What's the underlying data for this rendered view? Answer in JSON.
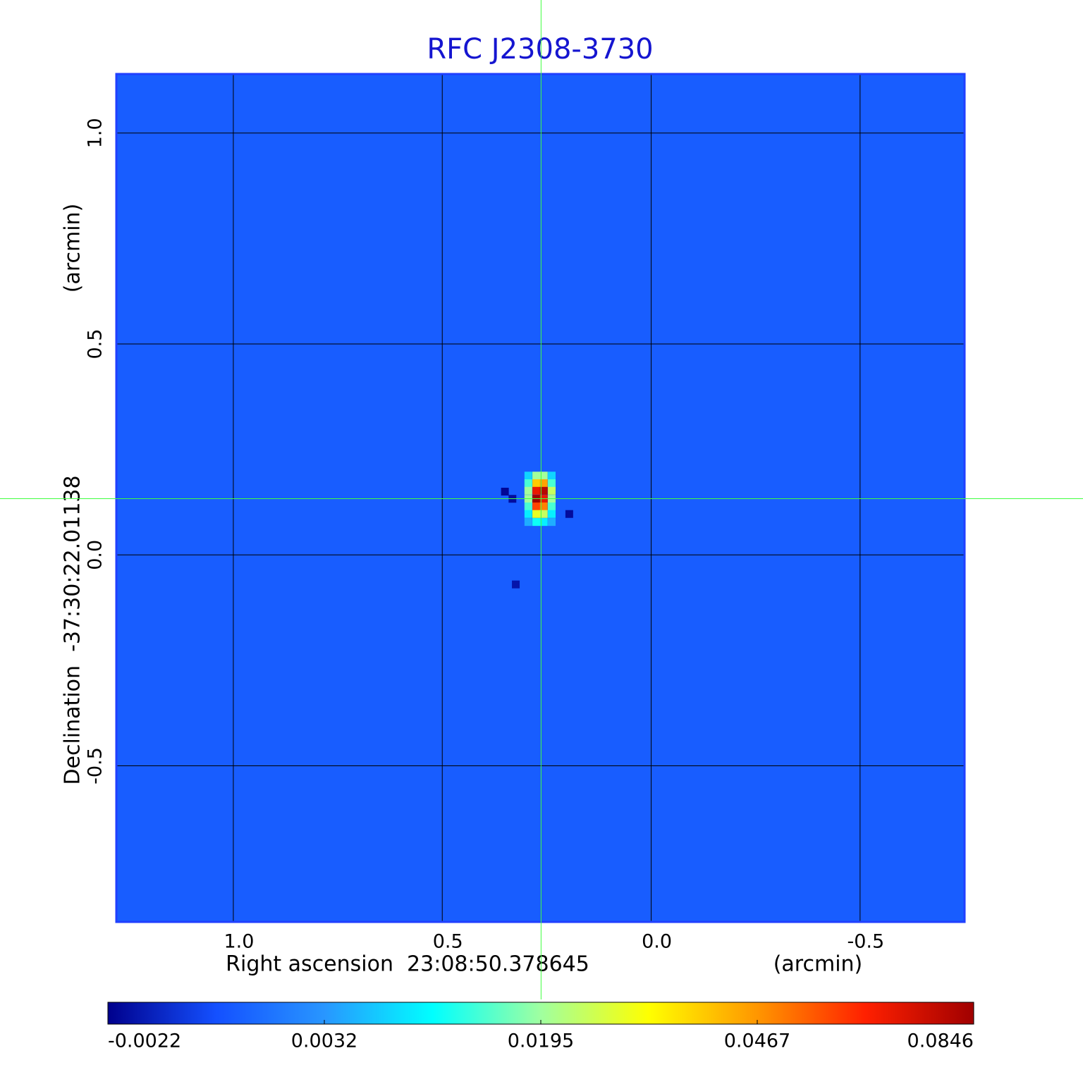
{
  "chart_data": {
    "type": "image",
    "title": "RFC J2308-3730",
    "xlabel": "Right ascension  23:08:50.378645",
    "xunit": "(arcmin)",
    "ylabel": "Declination  -37:30:22.01138",
    "yunit": "(arcmin)",
    "xlim": [
      1.28,
      -0.75
    ],
    "ylim": [
      -0.87,
      1.14
    ],
    "xticks": [
      {
        "value": 1,
        "label": "1.0"
      },
      0.5,
      {
        "value": 0,
        "label": "0.0"
      },
      -0.5
    ],
    "yticks": [
      {
        "value": 1,
        "label": "1.0"
      },
      0.5,
      {
        "value": 0,
        "label": "0.0"
      },
      -0.5
    ],
    "grid": true,
    "background_value": 0.001,
    "pixel_size": 0.0185,
    "pixels": {
      "x": [
        0.294,
        0.275,
        0.257,
        0.238,
        0.294,
        0.275,
        0.257,
        0.238,
        0.294,
        0.275,
        0.257,
        0.238,
        0.294,
        0.275,
        0.257,
        0.238,
        0.294,
        0.275,
        0.257,
        0.238,
        0.294,
        0.275,
        0.257,
        0.238,
        0.294,
        0.275,
        0.257,
        0.238,
        0.35,
        0.332,
        0.324,
        0.196
      ],
      "y": [
        0.188,
        0.188,
        0.188,
        0.188,
        0.17,
        0.17,
        0.17,
        0.17,
        0.152,
        0.152,
        0.152,
        0.152,
        0.133,
        0.133,
        0.133,
        0.133,
        0.115,
        0.115,
        0.115,
        0.115,
        0.097,
        0.097,
        0.097,
        0.097,
        0.078,
        0.078,
        0.078,
        0.078,
        0.15,
        0.133,
        -0.07,
        0.097
      ],
      "values": [
        0.008,
        0.02,
        0.02,
        0.008,
        0.015,
        0.04,
        0.045,
        0.015,
        0.02,
        0.07,
        0.08,
        0.025,
        0.02,
        0.0846,
        0.07,
        0.02,
        0.015,
        0.06,
        0.05,
        0.015,
        0.01,
        0.03,
        0.025,
        0.01,
        0.005,
        0.012,
        0.01,
        0.005,
        -0.002,
        -0.0018,
        -0.0015,
        -0.0018
      ]
    },
    "crosshair": {
      "x": 0.2635,
      "y": 0.1333,
      "color": "#40ff40"
    },
    "colorbar": {
      "ticks": [
        -0.0022,
        0.0032,
        0.0195,
        0.0467,
        0.0846
      ],
      "colormap": [
        "#00008c",
        "#1450ff",
        "#2896ff",
        "#00ffff",
        "#a0ffa0",
        "#ffff00",
        "#ff9600",
        "#ff2000",
        "#a00000"
      ]
    },
    "title_color": "#1515d0",
    "border_color": "#2040ff"
  }
}
